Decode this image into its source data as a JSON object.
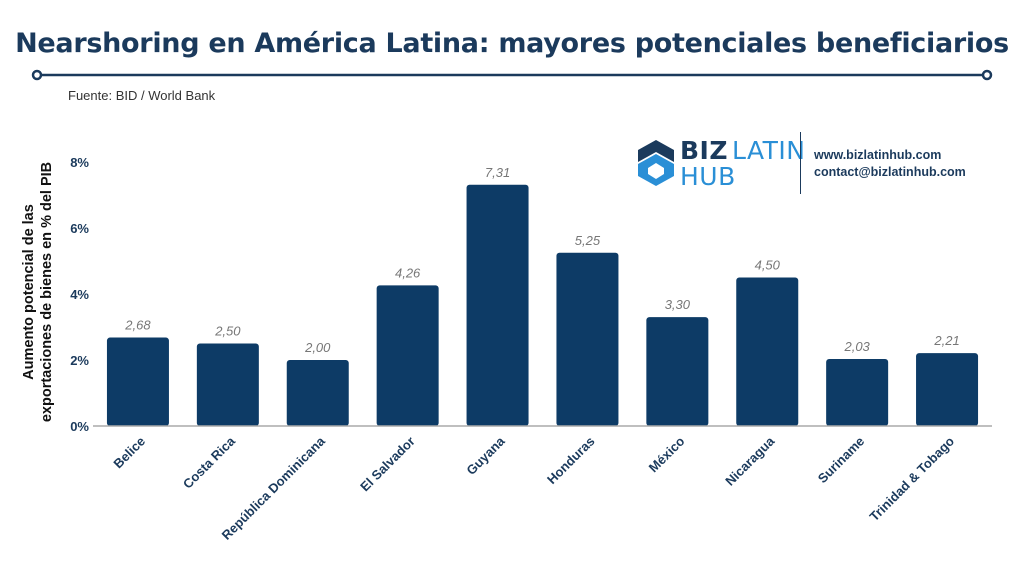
{
  "header": {
    "title": "Nearshoring en América Latina: mayores potenciales beneficiarios",
    "source": "Fuente:  BID / World Bank"
  },
  "logo": {
    "brand_biz": "BIZ",
    "brand_latin": "LATIN",
    "brand_hub": "HUB",
    "website": "www.bizlatinhub.com",
    "email": "contact@bizlatinhub.com",
    "icon": "bizlatinhub-logo-icon"
  },
  "colors": {
    "title": "#1b3a5c",
    "bar": "#0d3b66",
    "accent": "#2a8fd6",
    "value_label": "#777777"
  },
  "chart_data": {
    "type": "bar",
    "title": "Nearshoring en América Latina: mayores potenciales beneficiarios",
    "ylabel_line1": "Aumento potencial de las",
    "ylabel_line2": "exportaciones de bienes en % del PIB",
    "xlabel": "",
    "ylim": [
      0,
      8
    ],
    "yticks": [
      0,
      2,
      4,
      6,
      8
    ],
    "ytick_labels": [
      "0%",
      "2%",
      "4%",
      "6%",
      "8%"
    ],
    "categories": [
      "Belice",
      "Costa Rica",
      "República Dominicana",
      "El Salvador",
      "Guyana",
      "Honduras",
      "México",
      "Nicaragua",
      "Suriname",
      "Trinidad & Tobago"
    ],
    "values": [
      2.68,
      2.5,
      2.0,
      4.26,
      7.31,
      5.25,
      3.3,
      4.5,
      2.03,
      2.21
    ],
    "value_labels": [
      "2,68",
      "2,50",
      "2,00",
      "4,26",
      "7,31",
      "5,25",
      "3,30",
      "4,50",
      "2,03",
      "2,21"
    ],
    "grid": false,
    "legend": "none"
  }
}
